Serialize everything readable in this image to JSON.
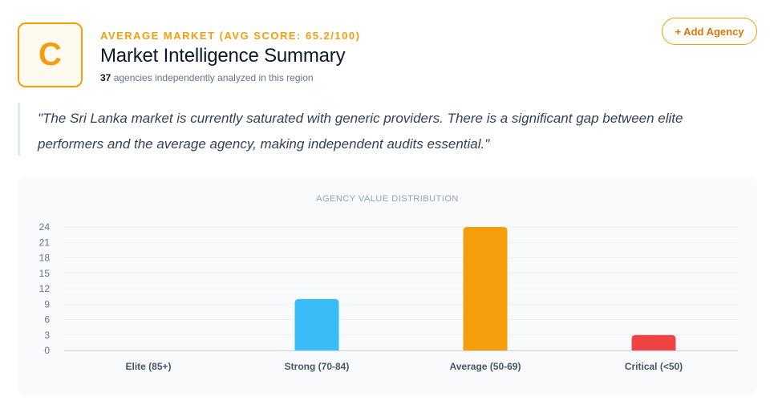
{
  "header": {
    "grade": "C",
    "rating_line": "AVERAGE MARKET (AVG SCORE: 65.2/100)",
    "title": "Market Intelligence Summary",
    "agency_count": "37",
    "subtitle_rest": " agencies independently analyzed in this region",
    "add_button_label": "+ Add Agency"
  },
  "quote": {
    "text": "\"The Sri Lanka market is currently saturated with generic providers. There is a significant gap between elite performers and the average agency, making independent audits essential.\""
  },
  "colors": {
    "accent": "#f59e0b",
    "strong": "#38bdf8",
    "average": "#f59e0b",
    "critical": "#ef4444"
  },
  "chart_data": {
    "type": "bar",
    "title": "AGENCY VALUE DISTRIBUTION",
    "categories": [
      "Elite (85+)",
      "Strong (70-84)",
      "Average (50-69)",
      "Critical (<50)"
    ],
    "values": [
      0,
      10,
      24,
      3
    ],
    "bar_colors": [
      "#10b981",
      "#38bdf8",
      "#f59e0b",
      "#ef4444"
    ],
    "yticks": [
      0,
      3,
      6,
      9,
      12,
      15,
      18,
      21,
      24
    ],
    "ylim": [
      0,
      24
    ],
    "xlabel": "",
    "ylabel": "",
    "grid": true,
    "legend": "none"
  }
}
